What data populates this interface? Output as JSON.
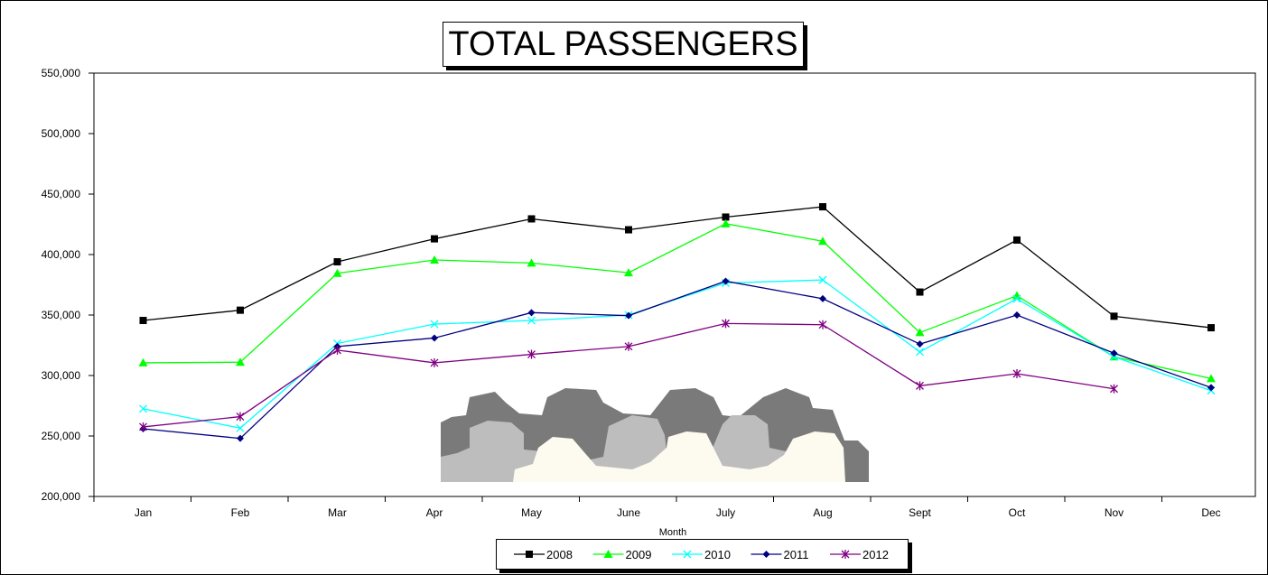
{
  "chart_data": {
    "type": "line",
    "title": "TOTAL PASSENGERS",
    "xlabel": "Month",
    "ylabel": "",
    "categories": [
      "Jan",
      "Feb",
      "Mar",
      "Apr",
      "May",
      "June",
      "July",
      "Aug",
      "Sept",
      "Oct",
      "Nov",
      "Dec"
    ],
    "ylim": [
      200000,
      550000
    ],
    "yticks": [
      200000,
      250000,
      300000,
      350000,
      400000,
      450000,
      500000,
      550000
    ],
    "ytick_labels": [
      "200,000",
      "250,000",
      "300,000",
      "350,000",
      "400,000",
      "450,000",
      "500,000",
      "550,000"
    ],
    "grid": false,
    "legend_position": "bottom",
    "series": [
      {
        "name": "2008",
        "color": "#000000",
        "marker": "square",
        "values": [
          345500,
          354000,
          394000,
          413000,
          429500,
          420500,
          431000,
          439500,
          369000,
          412000,
          349000,
          339500
        ]
      },
      {
        "name": "2009",
        "color": "#00ff00",
        "marker": "triangle",
        "values": [
          310500,
          311000,
          384500,
          395500,
          393000,
          385000,
          425500,
          411000,
          335500,
          366000,
          315500,
          297500
        ]
      },
      {
        "name": "2010",
        "color": "#00ffff",
        "marker": "x",
        "values": [
          272500,
          256500,
          326500,
          342500,
          345500,
          350000,
          376500,
          379000,
          319500,
          363500,
          315500,
          287500
        ]
      },
      {
        "name": "2011",
        "color": "#000080",
        "marker": "diamond",
        "values": [
          256000,
          248000,
          324000,
          331000,
          352000,
          349500,
          378000,
          363500,
          326000,
          350000,
          318500,
          290000
        ]
      },
      {
        "name": "2012",
        "color": "#800080",
        "marker": "star",
        "values": [
          257500,
          266000,
          321000,
          310500,
          317500,
          324000,
          343000,
          342000,
          291500,
          301500,
          289000,
          null
        ]
      }
    ]
  }
}
